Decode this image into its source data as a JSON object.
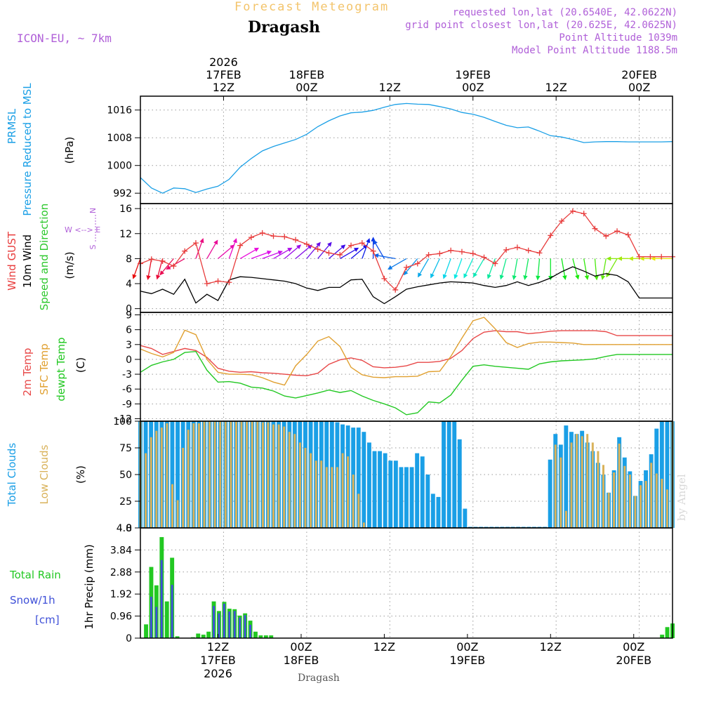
{
  "header": {
    "forecast_label": "Forecast Meteogram",
    "location": "Dragash",
    "model": "ICON-EU, ~ 7km",
    "requested": "requested lon,lat (20.6540E, 42.0622N)",
    "grid_point": "grid point closest lon,lat (20.625E, 42.0625N)",
    "point_altitude": "Point Altitude 1039m",
    "model_altitude": "Model Point Altitude 1188.5m",
    "footer": "Dragash",
    "credit": "by Angel"
  },
  "colors": {
    "pressure": "#1a9fe6",
    "gust": "#e83c3c",
    "wind": "#000000",
    "direction": "#2dc82d",
    "temp": "#e84848",
    "sfc": "#e0a030",
    "dewpt": "#22c822",
    "total_clouds": "#1a9fe6",
    "low_clouds": "#d9b25a",
    "rain": "#22c822",
    "snow": "#3f50d8",
    "compass": "#b060d8"
  },
  "chart_data": [
    {
      "type": "line",
      "id": "pressure",
      "ylabel_lines": [
        "PRMSL",
        "Pressure Reduced to MSL"
      ],
      "unit": "(hPa)",
      "yticks": [
        992,
        1000,
        1008,
        1016
      ],
      "ylim": [
        989,
        1020
      ],
      "x_hours": [
        0,
        2,
        4,
        6,
        8,
        10,
        12,
        14,
        16,
        18,
        20,
        22,
        24,
        26,
        28,
        30,
        32,
        34,
        36,
        38,
        40,
        42,
        44,
        46,
        48,
        50,
        52,
        54,
        56,
        58,
        60,
        62,
        64,
        66,
        68,
        70,
        72,
        74,
        76,
        78,
        80,
        82,
        84,
        86,
        88,
        90,
        92,
        94,
        96
      ],
      "series": [
        {
          "name": "PRMSL",
          "values": [
            996.5,
            993.5,
            992,
            993.5,
            993.3,
            992.2,
            993.2,
            994,
            996,
            999.5,
            1002,
            1004.2,
            1005.5,
            1006.5,
            1007.5,
            1009,
            1011.2,
            1012.9,
            1014.3,
            1015.2,
            1015.4,
            1015.9,
            1016.8,
            1017.6,
            1017.9,
            1017.7,
            1017.6,
            1017,
            1016.3,
            1015.3,
            1014.8,
            1013.9,
            1012.7,
            1011.6,
            1010.9,
            1011.1,
            1009.9,
            1008.6,
            1008.2,
            1007.5,
            1006.6,
            1006.8,
            1006.9,
            1006.9,
            1006.8,
            1006.8,
            1006.8,
            1006.8,
            1006.9
          ]
        }
      ]
    },
    {
      "type": "line",
      "id": "wind",
      "ylabel_lines": [
        "Wind GUST",
        "10m Wind",
        "Speed and Direction"
      ],
      "unit": "(m/s)",
      "compass": [
        "N",
        "W <--> E",
        "S"
      ],
      "yticks": [
        0,
        4,
        8,
        12,
        16
      ],
      "ylim": [
        -0.6,
        16.8
      ],
      "x_hours": [
        0,
        2,
        4,
        6,
        8,
        10,
        12,
        14,
        16,
        18,
        20,
        22,
        24,
        26,
        28,
        30,
        32,
        34,
        36,
        38,
        40,
        42,
        44,
        46,
        48,
        50,
        52,
        54,
        56,
        58,
        60,
        62,
        64,
        66,
        68,
        70,
        72,
        74,
        76,
        78,
        80,
        82,
        84,
        86,
        88,
        90,
        92,
        94,
        96
      ],
      "series": [
        {
          "name": "Wind GUST",
          "values": [
            7.2,
            7.9,
            7.6,
            6.8,
            9.2,
            10.5,
            4,
            4.4,
            4.2,
            10.1,
            11.4,
            12.1,
            11.6,
            11.5,
            11,
            10.3,
            9.5,
            8.9,
            8.6,
            10.1,
            10.5,
            9.2,
            4.8,
            3,
            6.6,
            7.2,
            8.6,
            8.8,
            9.3,
            9.1,
            8.8,
            8.2,
            7.2,
            9.4,
            9.8,
            9.3,
            8.9,
            11.7,
            14,
            15.6,
            15.2,
            12.8,
            11.6,
            12.4,
            11.8,
            8.3,
            8.3,
            8.3,
            8.3
          ]
        },
        {
          "name": "10m Wind",
          "values": [
            2.8,
            2.4,
            3.1,
            2.3,
            4.7,
            0.9,
            2.3,
            1.3,
            4.6,
            5.1,
            5,
            4.8,
            4.6,
            4.4,
            4,
            3.3,
            2.9,
            3.4,
            3.4,
            4.6,
            4.7,
            1.9,
            0.8,
            1.9,
            3.1,
            3.5,
            3.8,
            4.1,
            4.3,
            4.2,
            4.1,
            3.7,
            3.4,
            3.7,
            4.3,
            3.7,
            4.2,
            4.9,
            5.9,
            6.7,
            6,
            5.2,
            5.6,
            5.3,
            4.3,
            1.7,
            1.7,
            1.7,
            1.7
          ]
        }
      ],
      "direction_deg": [
        20,
        10,
        15,
        40,
        60,
        200,
        210,
        230,
        200,
        240,
        250,
        250,
        240,
        230,
        230,
        220,
        220,
        230,
        240,
        230,
        200,
        180,
        150,
        100,
        60,
        40,
        30,
        25,
        20,
        20,
        25,
        30,
        20,
        15,
        10,
        10,
        5,
        0,
        350,
        345,
        350,
        355,
        10,
        30,
        90,
        90,
        90,
        90,
        90
      ]
    },
    {
      "type": "line",
      "id": "temperature",
      "ylabel_lines": [
        "2m Temp",
        "SFC Temp",
        "dewpt Temp"
      ],
      "unit": "(C)",
      "yticks": [
        -12,
        -9,
        -6,
        -3,
        0,
        3,
        6,
        9
      ],
      "ylim": [
        -12.5,
        9.5
      ],
      "x_hours": [
        0,
        2,
        4,
        6,
        8,
        10,
        12,
        14,
        16,
        18,
        20,
        22,
        24,
        26,
        28,
        30,
        32,
        34,
        36,
        38,
        40,
        42,
        44,
        46,
        48,
        50,
        52,
        54,
        56,
        58,
        60,
        62,
        64,
        66,
        68,
        70,
        72,
        74,
        76,
        78,
        80,
        82,
        84,
        86,
        88,
        90,
        92,
        94,
        96
      ],
      "series": [
        {
          "name": "2m Temp",
          "values": [
            2.8,
            2.2,
            1,
            1.6,
            2.2,
            1.8,
            0.4,
            -1.8,
            -2.4,
            -2.6,
            -2.5,
            -2.7,
            -2.8,
            -3,
            -3.2,
            -3.3,
            -2.8,
            -1,
            -0.1,
            0.3,
            -0.2,
            -1.5,
            -1.7,
            -1.6,
            -1.3,
            -0.6,
            -0.6,
            -0.4,
            0.2,
            1.8,
            4.2,
            5.5,
            5.8,
            5.6,
            5.6,
            5.2,
            5.4,
            5.7,
            5.8,
            5.8,
            5.8,
            5.8,
            5.6,
            4.8,
            4.8,
            4.8,
            4.8,
            4.8,
            4.8
          ]
        },
        {
          "name": "SFC Temp",
          "values": [
            2.1,
            1.2,
            0.5,
            1.4,
            5.9,
            5,
            0,
            -2.6,
            -3,
            -3,
            -3.1,
            -3.7,
            -4.6,
            -5.2,
            -1.3,
            1,
            3.7,
            4.6,
            2.6,
            -1.6,
            -3.1,
            -3.6,
            -3.7,
            -3.5,
            -3.5,
            -3.4,
            -2.5,
            -2.4,
            0.6,
            4.3,
            7.8,
            8.5,
            6.2,
            3.4,
            2.4,
            3.2,
            3.5,
            3.5,
            3.4,
            3.3,
            3,
            3,
            3,
            3,
            3,
            3,
            3,
            3,
            3
          ]
        },
        {
          "name": "dewpt Temp",
          "values": [
            -2.6,
            -1.2,
            -0.5,
            0,
            1.4,
            1.6,
            -2.2,
            -4.6,
            -4.5,
            -4.8,
            -5.6,
            -5.8,
            -6.4,
            -7.4,
            -7.8,
            -7.3,
            -6.8,
            -6.2,
            -6.7,
            -6.3,
            -7.4,
            -8.3,
            -9,
            -9.8,
            -11.2,
            -10.8,
            -8.6,
            -8.8,
            -7.2,
            -4.2,
            -1.4,
            -1.1,
            -1.4,
            -1.6,
            -1.8,
            -2,
            -0.9,
            -0.5,
            -0.3,
            -0.2,
            -0.1,
            0.1,
            0.6,
            1,
            1,
            1,
            1,
            1,
            1
          ]
        }
      ]
    },
    {
      "type": "bar",
      "id": "clouds",
      "ylabel_lines": [
        "Total Clouds",
        "Low Clouds"
      ],
      "unit": "(%)",
      "yticks": [
        0,
        25,
        50,
        75,
        100
      ],
      "ylim": [
        0,
        100
      ],
      "x_start_hour": 0,
      "x_step_hours": 1,
      "series": [
        {
          "name": "Total Clouds",
          "values": [
            100,
            100,
            100,
            100,
            100,
            100,
            100,
            100,
            100,
            100,
            100,
            100,
            100,
            100,
            100,
            100,
            100,
            100,
            100,
            100,
            100,
            100,
            100,
            100,
            100,
            100,
            100,
            100,
            100,
            100,
            100,
            100,
            100,
            100,
            100,
            100,
            100,
            99,
            97,
            96,
            94,
            94,
            90,
            80,
            72,
            72,
            70,
            63,
            63,
            57,
            57,
            57,
            70,
            67,
            50,
            32,
            29,
            100,
            100,
            100,
            83,
            18,
            1,
            1,
            1,
            1,
            1,
            1,
            1,
            1,
            1,
            1,
            1,
            1,
            1,
            1,
            1,
            64,
            88,
            78,
            96,
            90,
            88,
            91,
            80,
            72,
            61,
            50,
            33,
            54,
            85,
            66,
            53,
            30,
            44,
            54,
            69,
            93,
            100,
            100,
            100
          ]
        },
        {
          "name": "Low Clouds",
          "values": [
            100,
            70,
            85,
            91,
            94,
            98,
            41,
            26,
            75,
            92,
            98,
            98,
            100,
            100,
            100,
            100,
            100,
            100,
            100,
            100,
            100,
            100,
            100,
            99,
            99,
            97,
            97,
            95,
            90,
            88,
            80,
            75,
            70,
            63,
            63,
            57,
            57,
            57,
            70,
            67,
            50,
            32,
            5,
            0,
            0,
            0,
            0,
            0,
            0,
            0,
            0,
            0,
            0,
            0,
            0,
            0,
            0,
            0,
            0,
            0,
            0,
            0,
            0,
            0,
            0,
            0,
            0,
            0,
            0,
            0,
            0,
            0,
            0,
            0,
            0,
            0,
            0,
            0,
            78,
            66,
            16,
            80,
            88,
            86,
            88,
            80,
            72,
            59,
            33,
            52,
            79,
            58,
            50,
            30,
            40,
            44,
            61,
            51,
            46,
            36,
            100
          ]
        }
      ]
    },
    {
      "type": "bar",
      "id": "precip",
      "ylabel_lines": [
        "Total Rain",
        "Snow/1h",
        "[cm]"
      ],
      "yaxis_title": "1hr Precip (mm)",
      "unit": "(mm)",
      "yticks": [
        0,
        0.96,
        1.92,
        2.88,
        3.84,
        4.8
      ],
      "ylim": [
        0,
        4.8
      ],
      "x_start_hour": 0,
      "x_step_hours": 1,
      "series": [
        {
          "name": "Total Rain",
          "values": [
            0.6,
            3.1,
            2.3,
            4.4,
            1.6,
            3.5,
            0.08,
            0,
            0,
            0.04,
            0.2,
            0.15,
            0.28,
            1.6,
            1.18,
            1.58,
            1.28,
            1.26,
            0.98,
            1.08,
            0.76,
            0.28,
            0.12,
            0.12,
            0.12,
            0,
            0,
            0,
            0,
            0,
            0,
            0,
            0,
            0,
            0,
            0,
            0,
            0,
            0,
            0,
            0,
            0,
            0,
            0,
            0,
            0,
            0,
            0,
            0,
            0,
            0,
            0,
            0,
            0,
            0,
            0,
            0,
            0,
            0,
            0,
            0,
            0,
            0,
            0,
            0,
            0,
            0,
            0,
            0,
            0,
            0,
            0,
            0,
            0,
            0,
            0,
            0,
            0,
            0,
            0,
            0,
            0,
            0,
            0,
            0,
            0,
            0,
            0,
            0,
            0,
            0,
            0,
            0,
            0,
            0,
            0,
            0,
            0,
            0,
            0.15,
            0.48,
            0.64
          ]
        },
        {
          "name": "Snow/1h",
          "values": [
            0,
            1.8,
            1.36,
            3.4,
            0,
            2.32,
            0,
            0,
            0,
            0,
            0,
            0,
            0,
            1.4,
            1.08,
            1.5,
            1.16,
            1.18,
            0.9,
            1.0,
            0.58,
            0,
            0,
            0,
            0,
            0,
            0,
            0,
            0,
            0,
            0,
            0,
            0,
            0,
            0,
            0,
            0,
            0,
            0,
            0,
            0,
            0,
            0,
            0,
            0,
            0,
            0,
            0,
            0,
            0,
            0,
            0,
            0,
            0,
            0,
            0,
            0,
            0,
            0,
            0,
            0,
            0,
            0,
            0,
            0,
            0,
            0,
            0,
            0,
            0,
            0,
            0,
            0,
            0,
            0,
            0,
            0,
            0,
            0,
            0,
            0,
            0,
            0,
            0,
            0,
            0,
            0,
            0,
            0,
            0,
            0,
            0,
            0,
            0,
            0,
            0,
            0,
            0,
            0,
            0,
            0
          ]
        }
      ]
    }
  ],
  "x_axis": {
    "top_labels": [
      {
        "hour": 15,
        "lines": [
          "2026",
          "17FEB",
          "12Z"
        ]
      },
      {
        "hour": 30,
        "lines": [
          "18FEB",
          "00Z"
        ]
      },
      {
        "hour": 45,
        "lines": [
          "12Z"
        ]
      },
      {
        "hour": 60,
        "lines": [
          "19FEB",
          "00Z"
        ]
      },
      {
        "hour": 75,
        "lines": [
          "12Z"
        ]
      },
      {
        "hour": 90,
        "lines": [
          "20FEB",
          "00Z"
        ]
      }
    ],
    "bottom_labels": [
      {
        "hour": 14,
        "lines": [
          "12Z",
          "17FEB",
          "2026"
        ]
      },
      {
        "hour": 29,
        "lines": [
          "00Z",
          "18FEB"
        ]
      },
      {
        "hour": 44,
        "lines": [
          "12Z"
        ]
      },
      {
        "hour": 59,
        "lines": [
          "00Z",
          "19FEB"
        ]
      },
      {
        "hour": 74,
        "lines": [
          "12Z"
        ]
      },
      {
        "hour": 89,
        "lines": [
          "00Z",
          "20FEB"
        ]
      }
    ]
  }
}
